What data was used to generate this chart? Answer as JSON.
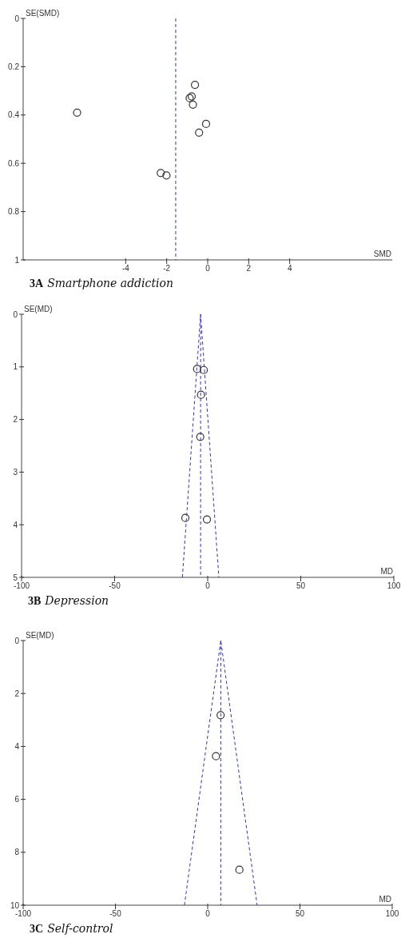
{
  "chart_data": [
    {
      "type": "scatter",
      "title": "3A Smartphone addiction",
      "xlabel": "SMD",
      "ylabel": "SE(SMD)",
      "xlim": [
        -9,
        9
      ],
      "xticks": [
        -4,
        -2,
        0,
        2,
        4
      ],
      "ylim": [
        1,
        0
      ],
      "yticks": [
        0,
        0.2,
        0.4,
        0.6,
        0.8,
        1
      ],
      "marker": "circle",
      "series": [
        {
          "color": "#333333",
          "x": [
            -6.37,
            -0.62,
            -0.88,
            -0.78,
            -0.72,
            -0.08,
            -0.42,
            -2.29,
            -2.01
          ],
          "values": [
            0.39,
            0.275,
            0.33,
            0.323,
            0.357,
            0.437,
            0.473,
            0.64,
            0.65
          ]
        }
      ],
      "ref_lines": [
        {
          "axis": "x",
          "value": -1.56,
          "color": "#3333cc",
          "line_style": "dashed"
        }
      ]
    },
    {
      "type": "scatter",
      "title": "3B Depression",
      "xlabel": "MD",
      "ylabel": "SE(MD)",
      "xlim": [
        -100,
        100
      ],
      "xticks": [
        -100,
        -50,
        0,
        50,
        100
      ],
      "ylim": [
        5,
        0
      ],
      "yticks": [
        0,
        1,
        2,
        3,
        4,
        5
      ],
      "series": [
        {
          "color": "#333333",
          "marker": "circle",
          "x": [
            -5.7,
            -2.1,
            -3.6,
            -4.0,
            -12.0,
            -0.4
          ],
          "values": [
            1.04,
            1.06,
            1.53,
            2.33,
            3.87,
            3.9
          ]
        },
        {
          "type": "line",
          "color": "#3333cc",
          "line_style": "dashed",
          "x": [
            -13.6,
            -3.8,
            6
          ],
          "values": [
            5,
            0,
            5
          ]
        }
      ],
      "ref_lines": [
        {
          "axis": "x",
          "value": -3.8,
          "color": "#3333cc",
          "line_style": "dashed"
        }
      ]
    },
    {
      "type": "scatter",
      "title": "3C Self-control",
      "xlabel": "MD",
      "ylabel": "SE(MD)",
      "xlim": [
        -100,
        100
      ],
      "xticks": [
        -100,
        -50,
        0,
        50,
        100
      ],
      "ylim": [
        10,
        0
      ],
      "yticks": [
        0,
        2,
        4,
        6,
        8,
        10
      ],
      "series": [
        {
          "color": "#333333",
          "marker": "circle",
          "x": [
            7.0,
            4.5,
            17.2
          ],
          "values": [
            2.82,
            4.37,
            8.66
          ]
        },
        {
          "type": "line",
          "color": "#3333cc",
          "line_style": "dashed",
          "x": [
            -12.6,
            7.1,
            26.8
          ],
          "values": [
            10,
            0,
            10
          ]
        }
      ],
      "ref_lines": [
        {
          "axis": "x",
          "value": 7.1,
          "color": "#3333cc",
          "line_style": "dashed"
        }
      ]
    }
  ]
}
